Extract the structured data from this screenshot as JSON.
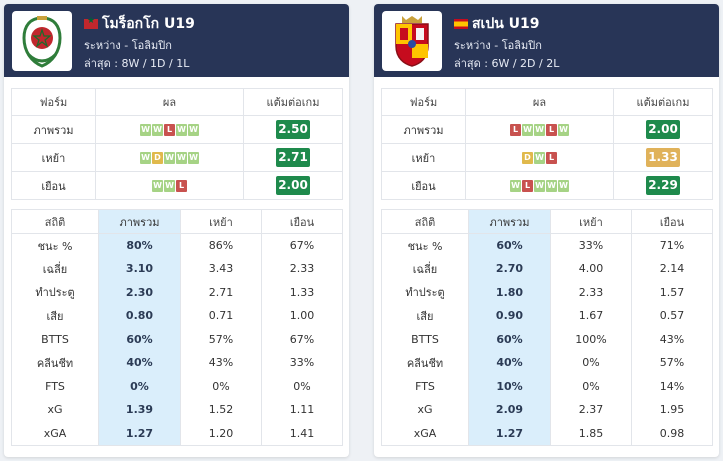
{
  "form_headers": [
    "ฟอร์ม",
    "ผล",
    "แต้มต่อเกม"
  ],
  "stat_headers": [
    "สถิติ",
    "ภาพรวม",
    "เหย้า",
    "เยือน"
  ],
  "teams": [
    {
      "name": "โมร็อกโก U19",
      "sub1": "ระหว่าง - โอลิมปิก",
      "sub2": "ล่าสุด : 8W / 1D / 1L",
      "form": [
        {
          "label": "ภาพรวม",
          "results": [
            "W",
            "W",
            "L",
            "W",
            "W"
          ],
          "ppg": "2.50",
          "ppg_color": "#1e8a4c"
        },
        {
          "label": "เหย้า",
          "results": [
            "W",
            "D",
            "W",
            "W",
            "W"
          ],
          "ppg": "2.71",
          "ppg_color": "#1e8a4c"
        },
        {
          "label": "เยือน",
          "results": [
            "W",
            "W",
            "L"
          ],
          "ppg": "2.00",
          "ppg_color": "#1e8a4c"
        }
      ],
      "stats": [
        {
          "label": "ชนะ %",
          "overall": "80%",
          "home": "86%",
          "away": "67%"
        },
        {
          "label": "เฉลี่ย",
          "overall": "3.10",
          "home": "3.43",
          "away": "2.33"
        },
        {
          "label": "ทำประตู",
          "overall": "2.30",
          "home": "2.71",
          "away": "1.33"
        },
        {
          "label": "เสีย",
          "overall": "0.80",
          "home": "0.71",
          "away": "1.00"
        },
        {
          "label": "BTTS",
          "overall": "60%",
          "home": "57%",
          "away": "67%"
        },
        {
          "label": "คลีนชีท",
          "overall": "40%",
          "home": "43%",
          "away": "33%"
        },
        {
          "label": "FTS",
          "overall": "0%",
          "home": "0%",
          "away": "0%"
        },
        {
          "label": "xG",
          "overall": "1.39",
          "home": "1.52",
          "away": "1.11"
        },
        {
          "label": "xGA",
          "overall": "1.27",
          "home": "1.20",
          "away": "1.41"
        }
      ]
    },
    {
      "name": "สเปน U19",
      "sub1": "ระหว่าง - โอลิมปิก",
      "sub2": "ล่าสุด : 6W / 2D / 2L",
      "form": [
        {
          "label": "ภาพรวม",
          "results": [
            "L",
            "W",
            "W",
            "L",
            "W"
          ],
          "ppg": "2.00",
          "ppg_color": "#1e8a4c"
        },
        {
          "label": "เหย้า",
          "results": [
            "D",
            "W",
            "L"
          ],
          "ppg": "1.33",
          "ppg_color": "#e0b25a"
        },
        {
          "label": "เยือน",
          "results": [
            "W",
            "L",
            "W",
            "W",
            "W"
          ],
          "ppg": "2.29",
          "ppg_color": "#1e8a4c"
        }
      ],
      "stats": [
        {
          "label": "ชนะ %",
          "overall": "60%",
          "home": "33%",
          "away": "71%"
        },
        {
          "label": "เฉลี่ย",
          "overall": "2.70",
          "home": "4.00",
          "away": "2.14"
        },
        {
          "label": "ทำประตู",
          "overall": "1.80",
          "home": "2.33",
          "away": "1.57"
        },
        {
          "label": "เสีย",
          "overall": "0.90",
          "home": "1.67",
          "away": "0.57"
        },
        {
          "label": "BTTS",
          "overall": "60%",
          "home": "100%",
          "away": "43%"
        },
        {
          "label": "คลีนชีท",
          "overall": "40%",
          "home": "0%",
          "away": "57%"
        },
        {
          "label": "FTS",
          "overall": "10%",
          "home": "0%",
          "away": "14%"
        },
        {
          "label": "xG",
          "overall": "2.09",
          "home": "2.37",
          "away": "1.95"
        },
        {
          "label": "xGA",
          "overall": "1.27",
          "home": "1.85",
          "away": "0.98"
        }
      ]
    }
  ]
}
